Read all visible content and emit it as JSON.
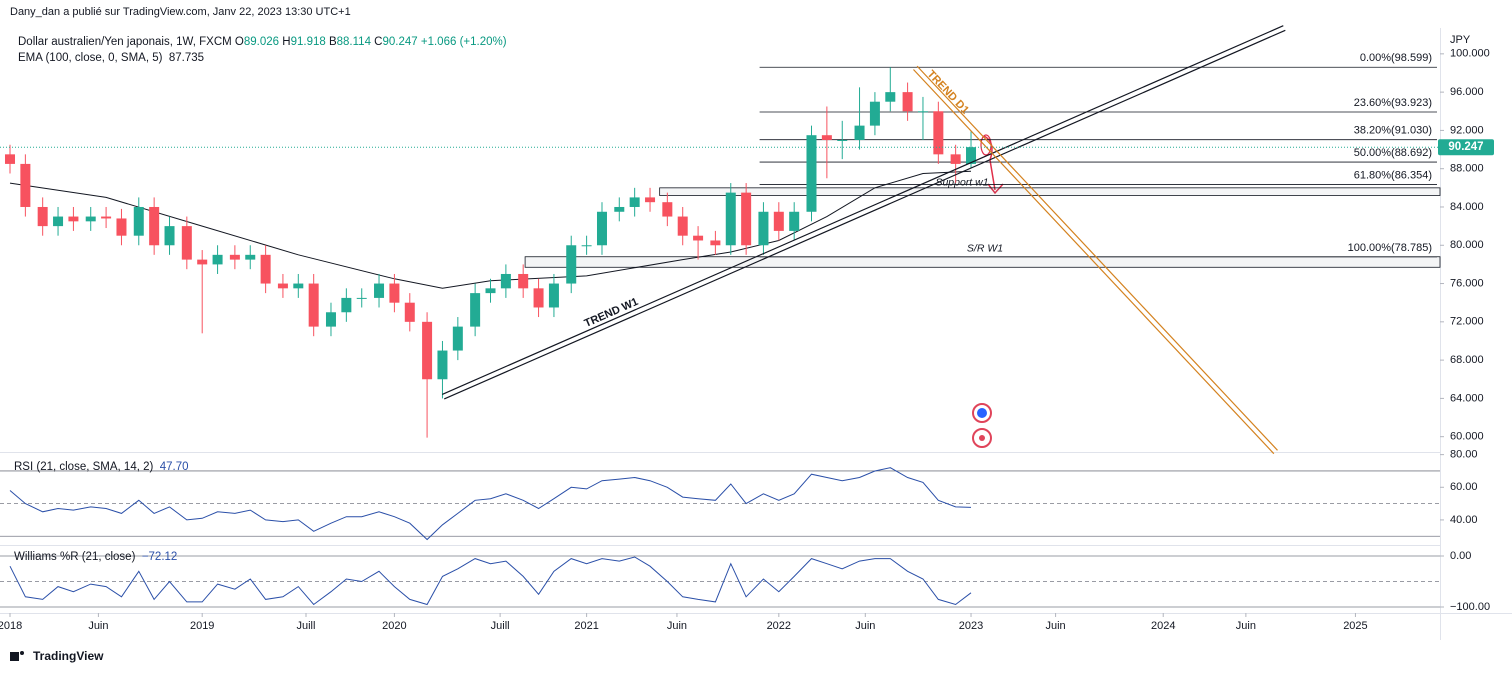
{
  "chart_data": {
    "type": "candlestick",
    "publisher": "Dany_dan a publié sur TradingView.com, Janv 22, 2023 13:30 UTC+1",
    "symbol": "Dollar australien/Yen japonais, 1W, FXCM",
    "ohlc": [
      {
        "key": "O",
        "value": "89.026"
      },
      {
        "key": "H",
        "value": "91.918"
      },
      {
        "key": "B",
        "value": "88.114"
      },
      {
        "key": "C",
        "value": "90.247"
      }
    ],
    "change": "+1.066 (+1.20%)",
    "currency": "JPY",
    "brand": "TradingView",
    "xlim": [
      2017.948,
      2025.44
    ],
    "xticks": [
      {
        "value": 2018,
        "label": "2018"
      },
      {
        "value": 2018.46,
        "label": "Juin"
      },
      {
        "value": 2019,
        "label": "2019"
      },
      {
        "value": 2019.54,
        "label": "Juill"
      },
      {
        "value": 2020,
        "label": "2020"
      },
      {
        "value": 2020.55,
        "label": "Juill"
      },
      {
        "value": 2021,
        "label": "2021"
      },
      {
        "value": 2021.47,
        "label": "Juin"
      },
      {
        "value": 2022,
        "label": "2022"
      },
      {
        "value": 2022.45,
        "label": "Juin"
      },
      {
        "value": 2023,
        "label": "2023"
      },
      {
        "value": 2023.44,
        "label": "Juin"
      },
      {
        "value": 2024,
        "label": "2024"
      },
      {
        "value": 2024.43,
        "label": "Juin"
      },
      {
        "value": 2025,
        "label": "2025"
      }
    ],
    "price": {
      "ylim": [
        58.4,
        102.7
      ],
      "yticks": [
        {
          "value": 60,
          "label": "60.000"
        },
        {
          "value": 64,
          "label": "64.000"
        },
        {
          "value": 68,
          "label": "68.000"
        },
        {
          "value": 72,
          "label": "72.000"
        },
        {
          "value": 76,
          "label": "76.000"
        },
        {
          "value": 80,
          "label": "80.000"
        },
        {
          "value": 84,
          "label": "84.000"
        },
        {
          "value": 88,
          "label": "88.000"
        },
        {
          "value": 92,
          "label": "92.000"
        },
        {
          "value": 96,
          "label": "96.000"
        },
        {
          "value": 100,
          "label": "100.000"
        }
      ],
      "up_color": "#22ab94",
      "down_color": "#f7525f",
      "x": [
        2018.0,
        2018.08,
        2018.17,
        2018.25,
        2018.33,
        2018.42,
        2018.5,
        2018.58,
        2018.67,
        2018.75,
        2018.83,
        2018.92,
        2019.0,
        2019.08,
        2019.17,
        2019.25,
        2019.33,
        2019.42,
        2019.5,
        2019.58,
        2019.67,
        2019.75,
        2019.83,
        2019.92,
        2020.0,
        2020.08,
        2020.17,
        2020.25,
        2020.33,
        2020.42,
        2020.5,
        2020.58,
        2020.67,
        2020.75,
        2020.83,
        2020.92,
        2021.0,
        2021.08,
        2021.17,
        2021.25,
        2021.33,
        2021.42,
        2021.5,
        2021.58,
        2021.67,
        2021.75,
        2021.83,
        2021.92,
        2022.0,
        2022.08,
        2022.17,
        2022.25,
        2022.33,
        2022.42,
        2022.5,
        2022.58,
        2022.67,
        2022.75,
        2022.83,
        2022.92,
        2023.0
      ],
      "open": [
        89.5,
        88.5,
        84,
        82,
        83,
        82.5,
        83,
        82.8,
        81,
        84,
        80,
        82,
        78.5,
        78,
        79,
        78.5,
        79,
        76,
        75.5,
        76,
        71.5,
        73,
        74.5,
        74.5,
        76,
        74,
        72,
        66,
        69,
        71.5,
        75,
        75.5,
        77,
        75.5,
        73.5,
        76,
        80,
        80,
        83.5,
        84,
        85,
        84.5,
        83,
        81,
        80.5,
        80,
        85.5,
        80,
        83.5,
        81.5,
        83.5,
        91.5,
        91,
        91,
        92.5,
        95,
        96,
        94,
        94,
        89.5,
        88.5
      ],
      "high": [
        90.5,
        89.5,
        85,
        84,
        84,
        84,
        84,
        83.8,
        85,
        85,
        83,
        83,
        79.5,
        80,
        80,
        80,
        80,
        77,
        77,
        77,
        74,
        75.5,
        75.5,
        77,
        77,
        75,
        73,
        70,
        72.5,
        76,
        76.5,
        78,
        78,
        76.5,
        77,
        81,
        81,
        84.5,
        85,
        86,
        86,
        85.5,
        84,
        82,
        81.5,
        86.5,
        86.5,
        84.5,
        84.5,
        84.5,
        92.5,
        94.5,
        93,
        96.5,
        96,
        98.6,
        97,
        95.5,
        95,
        90.5,
        91.9
      ],
      "low": [
        87.5,
        83,
        81,
        81,
        81.5,
        81.5,
        81.8,
        80,
        80,
        79,
        79,
        77.5,
        70.8,
        77,
        77.5,
        77.5,
        75,
        74.5,
        74.5,
        70.5,
        70.5,
        72,
        73.5,
        73.5,
        73,
        71,
        59.9,
        64,
        68,
        70.5,
        74,
        74.5,
        74.5,
        72.5,
        72.5,
        75,
        79,
        79,
        82.5,
        83,
        83.5,
        82,
        80,
        78.5,
        79,
        79,
        79,
        79,
        80.5,
        80.5,
        82.5,
        87,
        89,
        90,
        91.5,
        94,
        93,
        91,
        88.5,
        86.5,
        88.1
      ],
      "close": [
        88.5,
        84,
        82,
        83,
        82.5,
        83,
        82.8,
        81,
        84,
        80,
        82,
        78.5,
        78,
        79,
        78.5,
        79,
        76,
        75.5,
        76,
        71.5,
        73,
        74.5,
        74.5,
        76,
        74,
        72,
        66,
        69,
        71.5,
        75,
        75.5,
        77,
        75.5,
        73.5,
        76,
        80,
        80,
        83.5,
        84,
        85,
        84.5,
        83,
        81,
        80.5,
        80,
        85.5,
        80,
        83.5,
        81.5,
        83.5,
        91.5,
        91,
        91,
        92.5,
        95,
        96,
        94,
        94,
        89.5,
        88.5,
        90.25
      ],
      "last": 90.247,
      "last_color": "#22ab94",
      "ema": {
        "name": "EMA (100, close, 0, SMA, 5)",
        "last": 87.735,
        "color": "#131722",
        "x": [
          2018.0,
          2018.5,
          2019.0,
          2019.5,
          2020.0,
          2020.25,
          2020.5,
          2021.0,
          2021.5,
          2021.75,
          2022.0,
          2022.25,
          2022.5,
          2022.75,
          2023.0
        ],
        "values": [
          86.5,
          85,
          82,
          79,
          76.5,
          75.5,
          76.3,
          76.8,
          78.5,
          79.3,
          80.5,
          83,
          86,
          87.5,
          87.735
        ]
      },
      "fib_start": 2021.9,
      "fib": [
        {
          "value": 98.599,
          "label": "0.00%(98.599)"
        },
        {
          "value": 93.923,
          "label": "23.60%(93.923)"
        },
        {
          "value": 91.03,
          "label": "38.20%(91.030)"
        },
        {
          "value": 88.692,
          "label": "50.00%(88.692)"
        },
        {
          "value": 86.354,
          "label": "61.80%(86.354)"
        },
        {
          "value": 78.785,
          "label": "100.00%(78.785)"
        }
      ],
      "zones": [
        {
          "label": "S/R W1",
          "start": 2020.68,
          "low": 77.7,
          "high": 78.8
        },
        {
          "label": "Support w1",
          "start": 2021.38,
          "low": 85.2,
          "high": 86.0
        }
      ],
      "trends": [
        {
          "label": "TREND W1",
          "color": "#131722",
          "start": [
            2020.254,
            64.18
          ],
          "end": [
            2024.63,
            102.7
          ]
        },
        {
          "label": "TREND D1",
          "color": "#d4821f",
          "start": [
            2022.71,
            98.54
          ],
          "end": [
            2024.585,
            58.4
          ]
        }
      ]
    },
    "rsi": {
      "name": "RSI (21, close, SMA, 14, 2)",
      "last": "47.70",
      "color": "#2a4fa8",
      "ylim": [
        27.7,
        81
      ],
      "yticks": [
        {
          "value": 40,
          "label": "40.00"
        },
        {
          "value": 60,
          "label": "60.00"
        },
        {
          "value": 80,
          "label": "80.00"
        }
      ],
      "bands": [
        70,
        50,
        30
      ],
      "values": [
        58,
        50,
        45,
        47,
        46,
        48,
        47,
        44,
        52,
        44,
        48,
        40,
        41,
        45,
        44,
        46,
        40,
        39,
        40,
        33,
        38,
        42,
        42,
        45,
        42,
        38,
        28,
        37,
        44,
        52,
        53,
        56,
        52,
        47,
        53,
        60,
        59,
        64,
        65,
        66,
        64,
        60,
        54,
        53,
        52,
        62,
        50,
        56,
        52,
        56,
        68,
        66,
        64,
        66,
        70,
        72,
        66,
        63,
        52,
        48,
        47.7
      ]
    },
    "williams": {
      "name": "Williams %R (21, close)",
      "last": "−72.12",
      "color": "#2a4fa8",
      "ylim": [
        -109.8,
        15.7
      ],
      "yticks": [
        {
          "value": 0,
          "label": "0.00"
        },
        {
          "value": -100,
          "label": "−100.00"
        }
      ],
      "bands": [
        0,
        -50,
        -100
      ],
      "values": [
        -20,
        -80,
        -85,
        -60,
        -70,
        -55,
        -60,
        -80,
        -30,
        -85,
        -50,
        -90,
        -90,
        -55,
        -65,
        -45,
        -85,
        -80,
        -60,
        -95,
        -70,
        -45,
        -50,
        -30,
        -60,
        -85,
        -95,
        -40,
        -25,
        -5,
        -15,
        -10,
        -40,
        -75,
        -30,
        -5,
        -15,
        -5,
        -10,
        -2,
        -20,
        -50,
        -80,
        -85,
        -90,
        -15,
        -80,
        -45,
        -70,
        -40,
        -5,
        -15,
        -25,
        -10,
        -5,
        -5,
        -30,
        -45,
        -85,
        -95,
        -72.12
      ]
    }
  }
}
